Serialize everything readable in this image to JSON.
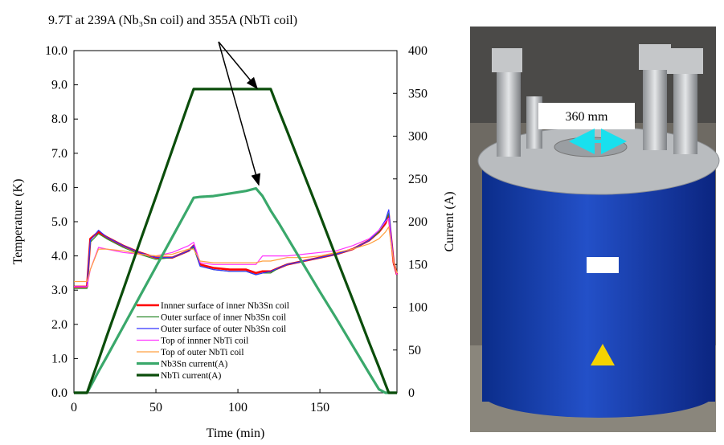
{
  "chart_data": {
    "type": "line",
    "annotation": "9.7T at 239A (Nb₃Sn coil) and 355A (NbTi coil)",
    "xlabel": "Time (min)",
    "ylabel": "Temperature (K)",
    "y2label": "Current (A)",
    "photo_label": "360 mm",
    "x": [
      0,
      5,
      8,
      10,
      15,
      20,
      30,
      40,
      50,
      60,
      70,
      73,
      77,
      85,
      95,
      105,
      111,
      115,
      120,
      125,
      130,
      140,
      150,
      160,
      170,
      180,
      186,
      190,
      192,
      195,
      197
    ],
    "xlim": [
      0,
      197
    ],
    "xticks": [
      0,
      50,
      100,
      150
    ],
    "ylim": [
      0,
      10
    ],
    "yticks": [
      {
        "value": 0,
        "label": "0.0"
      },
      {
        "value": 1,
        "label": "1.0"
      },
      {
        "value": 2,
        "label": "2.0"
      },
      {
        "value": 3,
        "label": "3.0"
      },
      {
        "value": 4,
        "label": "4.0"
      },
      {
        "value": 5,
        "label": "5.0"
      },
      {
        "value": 6,
        "label": "6.0"
      },
      {
        "value": 7,
        "label": "7.0"
      },
      {
        "value": 8,
        "label": "8.0"
      },
      {
        "value": 9,
        "label": "9.0"
      },
      {
        "value": 10,
        "label": "10.0"
      }
    ],
    "y2lim": [
      0,
      400
    ],
    "y2ticks": [
      0,
      50,
      100,
      150,
      200,
      250,
      300,
      350,
      400
    ],
    "legend": "lower-left",
    "series": [
      {
        "name": "Innner surface of inner Nb3Sn coil",
        "color": "#ff0000",
        "values": [
          3.1,
          3.1,
          3.1,
          4.5,
          4.7,
          4.55,
          4.3,
          4.1,
          3.95,
          3.95,
          4.15,
          4.3,
          3.75,
          3.65,
          3.6,
          3.6,
          3.5,
          3.55,
          3.55,
          3.65,
          3.75,
          3.85,
          3.95,
          4.05,
          4.2,
          4.45,
          4.7,
          4.95,
          5.2,
          3.8,
          3.45
        ]
      },
      {
        "name": "Outer surface of inner Nb3Sn coil",
        "color": "#2e8b2e",
        "values": [
          3.05,
          3.05,
          3.05,
          4.4,
          4.65,
          4.5,
          4.25,
          4.05,
          3.9,
          3.95,
          4.15,
          4.25,
          3.7,
          3.6,
          3.55,
          3.55,
          3.45,
          3.5,
          3.5,
          3.65,
          3.75,
          3.85,
          3.95,
          4.05,
          4.2,
          4.45,
          4.7,
          5.0,
          5.25,
          3.8,
          3.45
        ]
      },
      {
        "name": "Outer surface of outer Nb3Sn coil",
        "color": "#3333ff",
        "values": [
          3.1,
          3.1,
          3.1,
          4.45,
          4.75,
          4.55,
          4.3,
          4.1,
          3.95,
          3.95,
          4.15,
          4.3,
          3.7,
          3.6,
          3.55,
          3.55,
          3.45,
          3.5,
          3.55,
          3.65,
          3.75,
          3.85,
          3.95,
          4.05,
          4.2,
          4.45,
          4.75,
          5.05,
          5.35,
          3.8,
          3.45
        ]
      },
      {
        "name": "Top of innner NbTi coil",
        "color": "#ff33ff",
        "values": [
          3.1,
          3.1,
          3.1,
          3.6,
          4.25,
          4.2,
          4.1,
          4.05,
          4.0,
          4.1,
          4.3,
          4.4,
          3.8,
          3.75,
          3.75,
          3.75,
          3.75,
          4.0,
          4.0,
          4.0,
          4.0,
          4.05,
          4.1,
          4.15,
          4.3,
          4.5,
          4.75,
          5.0,
          5.1,
          3.8,
          3.45
        ]
      },
      {
        "name": "Top of outer NbTi coil",
        "color": "#ffa040",
        "values": [
          3.25,
          3.25,
          3.25,
          3.6,
          4.2,
          4.2,
          4.15,
          4.05,
          4.0,
          4.05,
          4.2,
          4.2,
          3.85,
          3.8,
          3.8,
          3.8,
          3.8,
          3.85,
          3.85,
          3.9,
          3.95,
          3.95,
          4.0,
          4.1,
          4.2,
          4.35,
          4.5,
          4.7,
          4.85,
          3.8,
          3.5
        ]
      },
      {
        "name": "Nb3Sn current(A)",
        "color": "#3aa86b",
        "axis": "y2",
        "values": [
          0,
          0,
          0,
          7,
          25,
          42,
          77,
          112,
          147,
          182,
          217,
          228,
          229,
          230,
          233,
          236,
          239,
          230,
          213,
          198,
          182,
          150,
          118,
          87,
          55,
          23,
          4,
          0,
          0,
          0,
          0
        ]
      },
      {
        "name": "NbTi current(A)",
        "color": "#0b4d0b",
        "axis": "y2",
        "values": [
          0,
          0,
          0,
          11,
          38,
          66,
          120,
          175,
          229,
          284,
          339,
          355,
          355,
          355,
          355,
          355,
          355,
          355,
          355,
          330,
          306,
          257,
          208,
          158,
          109,
          59,
          30,
          10,
          0,
          0,
          0
        ]
      }
    ]
  }
}
